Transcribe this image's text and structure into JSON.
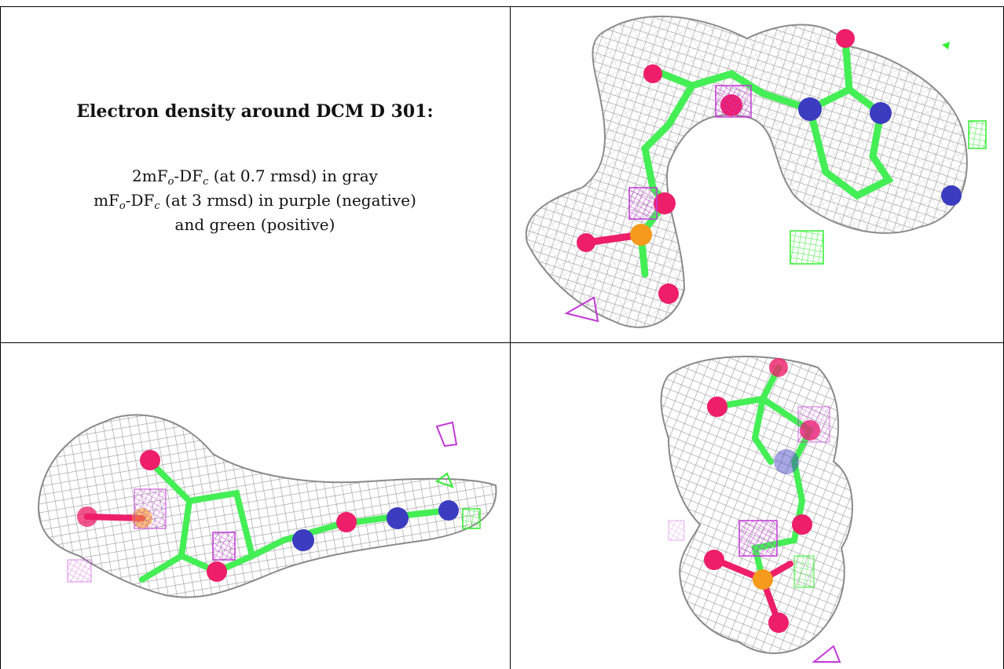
{
  "title": "Electron density around DCM D 301:",
  "legend": {
    "line1": {
      "a": "2mF",
      "b": "o",
      "c": "-DF",
      "d": "c",
      "e": " (at 0.7 rmsd) in gray"
    },
    "line2": {
      "a": "mF",
      "b": "o",
      "c": "-DF",
      "d": "c",
      "e": " (at 3 rmsd) in purple (negative)"
    },
    "line3": "and green (positive)"
  },
  "colors": {
    "mesh_gray": "#9a9a9a",
    "mesh_negative": "#c23ad6",
    "mesh_positive": "#33ee33",
    "carbon": "#44ee55",
    "oxygen": "#ee1e6a",
    "nitrogen": "#3c3cc0",
    "phosphorus": "#f59a1c"
  },
  "panels": [
    {
      "view": "front",
      "icon": "molecule-density-view-1"
    },
    {
      "view": "side",
      "icon": "molecule-density-view-2"
    },
    {
      "view": "top",
      "icon": "molecule-density-view-3"
    }
  ]
}
